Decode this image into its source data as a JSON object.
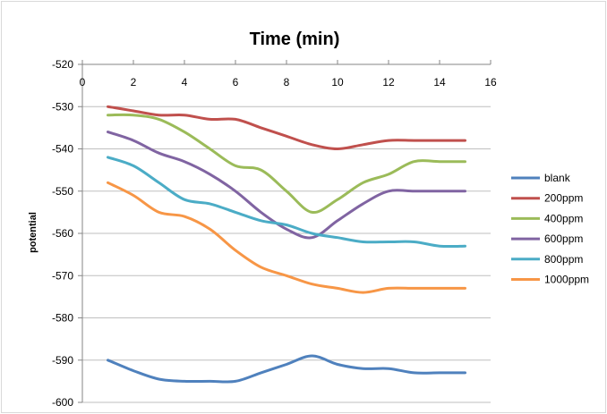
{
  "chart_data": {
    "type": "line",
    "title": "Time (min)",
    "xlabel": "",
    "ylabel": "potential",
    "xlim": [
      0,
      16
    ],
    "ylim": [
      -600,
      -520
    ],
    "xticks": [
      0,
      2,
      4,
      6,
      8,
      10,
      12,
      14,
      16
    ],
    "yticks": [
      -520,
      -530,
      -540,
      -550,
      -560,
      -570,
      -580,
      -590,
      -600
    ],
    "x_axis_position": "top",
    "grid": "horizontal",
    "legend_position": "right",
    "x": [
      1,
      2,
      3,
      4,
      5,
      6,
      7,
      8,
      9,
      10,
      11,
      12,
      13,
      14,
      15
    ],
    "series": [
      {
        "name": "blank",
        "color": "#4f81bd",
        "values": [
          -590,
          -592.5,
          -594.5,
          -595,
          -595,
          -595,
          -593,
          -591,
          -589,
          -591,
          -592,
          -592,
          -593,
          -593,
          -593
        ]
      },
      {
        "name": "200ppm",
        "color": "#c0504d",
        "values": [
          -530,
          -531,
          -532,
          -532,
          -533,
          -533,
          -535,
          -537,
          -539,
          -540,
          -539,
          -538,
          -538,
          -538,
          -538
        ]
      },
      {
        "name": "400ppm",
        "color": "#9bbb59",
        "values": [
          -532,
          -532,
          -533,
          -536,
          -540,
          -544,
          -545,
          -550,
          -555,
          -552,
          -548,
          -546,
          -543,
          -543,
          -543
        ]
      },
      {
        "name": "600ppm",
        "color": "#8064a2",
        "values": [
          -536,
          -538,
          -541,
          -543,
          -546,
          -550,
          -555,
          -559,
          -561,
          -557,
          -553,
          -550,
          -550,
          -550,
          -550
        ]
      },
      {
        "name": "800ppm",
        "color": "#4bacc6",
        "values": [
          -542,
          -544,
          -548,
          -552,
          -553,
          -555,
          -557,
          -558,
          -560,
          -561,
          -562,
          -562,
          -562,
          -563,
          -563
        ]
      },
      {
        "name": "1000ppm",
        "color": "#f79646",
        "values": [
          -548,
          -551,
          -555,
          -556,
          -559,
          -564,
          -568,
          -570,
          -572,
          -573,
          -574,
          -573,
          -573,
          -573,
          -573
        ]
      }
    ]
  }
}
